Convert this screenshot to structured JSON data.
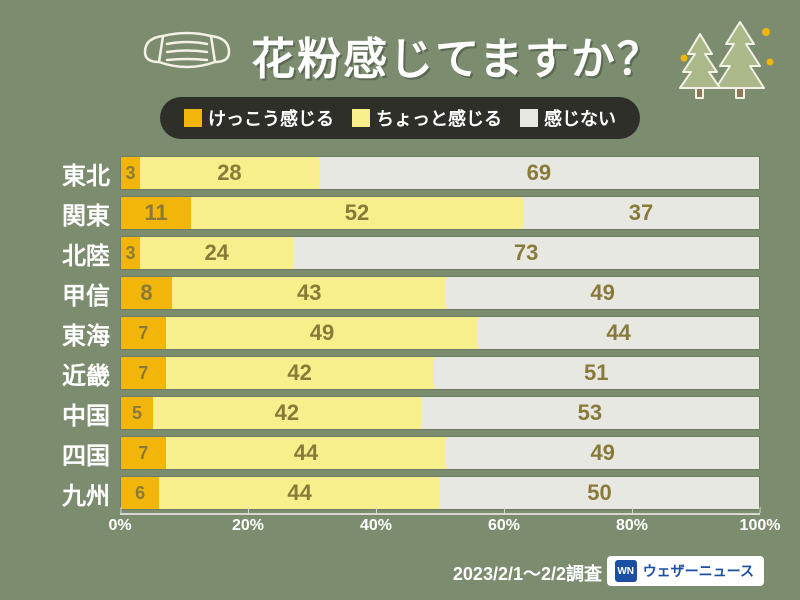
{
  "background_color": "#7b8c6f",
  "title": "花粉感じてますか？",
  "title_color": "#ffffff",
  "legend": {
    "bg": "#2f2f2a",
    "items": [
      {
        "label": "けっこう感じる",
        "color": "#f2b60a"
      },
      {
        "label": "ちょっと感じる",
        "color": "#f7ee8c"
      },
      {
        "label": "感じない",
        "color": "#e8e8e2"
      }
    ]
  },
  "chart": {
    "type": "stacked-bar-horizontal",
    "xlim": [
      0,
      100
    ],
    "tick_step": 20,
    "tick_suffix": "%",
    "value_label_color": "#8a7a3a",
    "series_colors": [
      "#f2b60a",
      "#f7ee8c",
      "#e8e8e2"
    ],
    "rows": [
      {
        "label": "東北",
        "values": [
          3,
          28,
          69
        ]
      },
      {
        "label": "関東",
        "values": [
          11,
          52,
          37
        ]
      },
      {
        "label": "北陸",
        "values": [
          3,
          24,
          73
        ]
      },
      {
        "label": "甲信",
        "values": [
          8,
          43,
          49
        ]
      },
      {
        "label": "東海",
        "values": [
          7,
          49,
          44
        ]
      },
      {
        "label": "近畿",
        "values": [
          7,
          42,
          51
        ]
      },
      {
        "label": "中国",
        "values": [
          5,
          42,
          53
        ]
      },
      {
        "label": "四国",
        "values": [
          7,
          44,
          49
        ]
      },
      {
        "label": "九州",
        "values": [
          6,
          44,
          50
        ]
      }
    ]
  },
  "survey_date": "2023/2/1〜2/2調査",
  "brand": {
    "logo_text": "WN",
    "name": "ウェザーニュース",
    "color": "#1b4fa3"
  },
  "icons": {
    "mask": {
      "stroke": "#f4f1e6",
      "width": 100
    },
    "trees": {
      "fill": "#aab88a",
      "accent": "#f2b60a",
      "width": 110
    }
  }
}
